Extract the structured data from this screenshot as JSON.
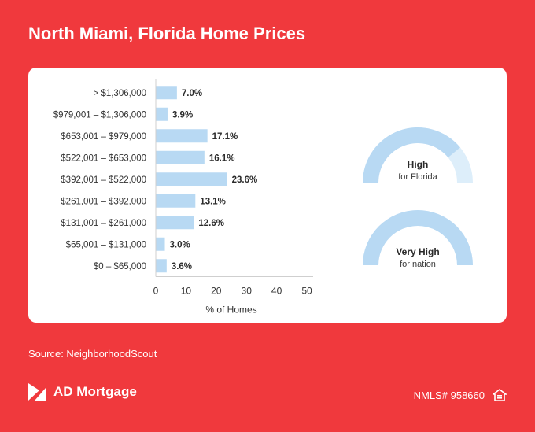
{
  "header": {
    "title": "North Miami, Florida Home Prices"
  },
  "chart_data": {
    "type": "bar",
    "orientation": "horizontal",
    "categories": [
      "> $1,306,000",
      "$979,001 – $1,306,000",
      "$653,001 – $979,000",
      "$522,001 – $653,000",
      "$392,001 – $522,000",
      "$261,001 – $392,000",
      "$131,001 – $261,000",
      "$65,001 – $131,000",
      "$0 – $65,000"
    ],
    "values": [
      7.0,
      3.9,
      17.1,
      16.1,
      23.6,
      13.1,
      12.6,
      3.0,
      3.6
    ],
    "value_labels": [
      "7.0%",
      "3.9%",
      "17.1%",
      "16.1%",
      "23.6%",
      "13.1%",
      "12.6%",
      "3.0%",
      "3.6%"
    ],
    "xlabel": "% of Homes",
    "xlim": [
      0,
      50
    ],
    "xticks": [
      0,
      10,
      20,
      30,
      40,
      50
    ],
    "grid": false,
    "bar_color": "#b8d9f3"
  },
  "gauges": [
    {
      "main": "High",
      "sub": "for Florida",
      "fill_fraction": 0.78,
      "color": "#b8d9f3",
      "track_color": "#ddeefa"
    },
    {
      "main": "Very High",
      "sub": "for nation",
      "fill_fraction": 1.0,
      "color": "#b8d9f3",
      "track_color": "#ddeefa"
    }
  ],
  "footer": {
    "source": "Source: NeighborhoodScout",
    "brand_name": "AD Mortgage",
    "nmls": "NMLS# 958660",
    "logo_icon": "ad-mortgage-logo-icon",
    "housing_icon": "equal-housing-icon"
  }
}
